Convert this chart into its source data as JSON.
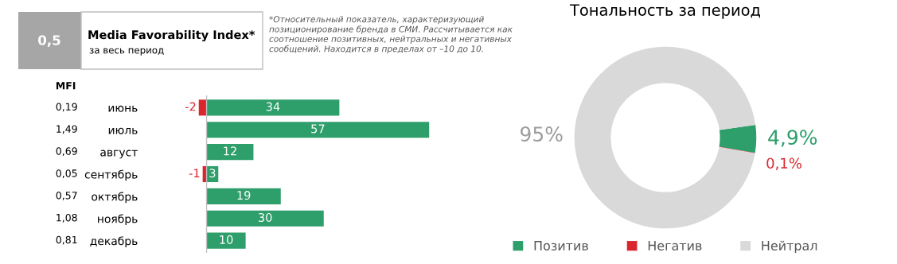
{
  "chart_data": [
    {
      "type": "other",
      "title": "Media Favorability Index*",
      "subtitle": "за весь период",
      "annotations": [
        "0,5",
        "*Относительный показатель, характеризующий\nпозиционирование бренда в СМИ. Рассчитывается как\nсоотношение позитивных, нейтральных и негативных\nсообщений. Находится в пределах от –10 до 10."
      ]
    },
    {
      "type": "bar",
      "orientation": "horizontal",
      "data_labels": true,
      "categories": [
        "июнь",
        "июль",
        "август",
        "сентябрь",
        "октябрь",
        "ноябрь",
        "декабрь"
      ],
      "y2label": "MFI",
      "y2_categories": [
        "0,19",
        "1,49",
        "0,69",
        "0,05",
        "0,57",
        "1,08",
        "0,81"
      ],
      "series": [
        {
          "color": "#2e9e6b",
          "values": [
            34,
            57,
            12,
            3,
            19,
            30,
            10
          ]
        },
        {
          "color": "#d9262e",
          "values": [
            -2,
            null,
            null,
            -1,
            null,
            null,
            null
          ]
        }
      ]
    },
    {
      "type": "donut",
      "title": "Тональность за период",
      "categories": [
        "Позитив",
        "Негатив",
        "Нейтрал"
      ],
      "values": [
        4.9,
        0.1,
        95
      ],
      "value_labels": [
        "4,9%",
        "0,1%",
        "95%"
      ],
      "colors": [
        "#2e9e6b",
        "#d9262e",
        "#d9d9d9"
      ],
      "legend": "bottom"
    }
  ]
}
